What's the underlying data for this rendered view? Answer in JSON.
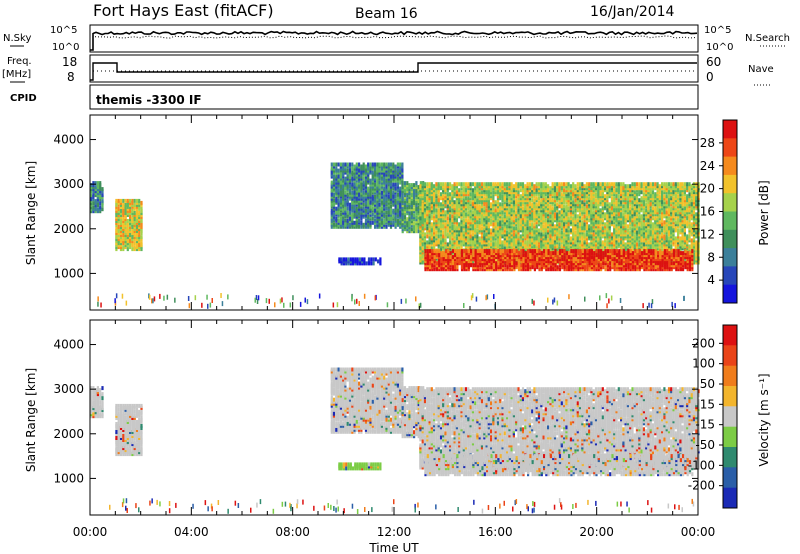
{
  "header": {
    "radar": "Fort Hays East (fitACF)",
    "beam": "Beam 16",
    "date": "16/Jan/2014"
  },
  "strip": {
    "nsky_label": "N.Sky",
    "nsky_ticks": [
      "10^5",
      "10^0"
    ],
    "nsearch_label": "N.Search",
    "nsearch_ticks": [
      "10^5",
      "10^0"
    ],
    "freq_label": "Freq.",
    "freq_unit": "[MHz]",
    "freq_ticks": [
      "18",
      "8"
    ],
    "nave_label": "Nave",
    "nave_ticks": [
      "60",
      "0"
    ],
    "cpid_label": "CPID",
    "cpid_value": "themis -3300 IF"
  },
  "chart_data": [
    {
      "type": "heatmap",
      "name": "Power",
      "ylabel": "Slant Range [km]",
      "ylim": [
        180,
        4550
      ],
      "yticks": [
        "4000",
        "3000",
        "2000",
        "1000"
      ],
      "xlim": [
        0,
        24
      ],
      "colorbar_label": "Power [dB]",
      "colorbar_ticks": [
        "28",
        "24",
        "20",
        "16",
        "12",
        "8",
        "4"
      ],
      "colors": [
        "#1515dd",
        "#2746b9",
        "#3b7f9a",
        "#3f8f5b",
        "#5fb85f",
        "#a6d24b",
        "#f2c22b",
        "#f58a1d",
        "#ee4616",
        "#dd1111"
      ],
      "regions": [
        {
          "t0": 0.0,
          "t1": 0.45,
          "r0": 2350,
          "r1": 3000,
          "level": 0.3
        },
        {
          "t0": 1.0,
          "t1": 2.0,
          "r0": 1500,
          "r1": 2600,
          "level": 0.6
        },
        {
          "t0": 9.5,
          "t1": 12.3,
          "r0": 2000,
          "r1": 3400,
          "level": 0.3
        },
        {
          "t0": 12.3,
          "t1": 13.2,
          "r0": 1900,
          "r1": 3000,
          "level": 0.4
        },
        {
          "t0": 13.0,
          "t1": 24.0,
          "r0": 1200,
          "r1": 3000,
          "level": 0.55
        },
        {
          "t0": 13.2,
          "t1": 23.8,
          "r0": 1050,
          "r1": 1500,
          "level": 0.9
        },
        {
          "t0": 9.8,
          "t1": 11.5,
          "r0": 1180,
          "r1": 1300,
          "level": 0.1
        }
      ]
    },
    {
      "type": "heatmap",
      "name": "Velocity",
      "ylabel": "Slant Range [km]",
      "ylim": [
        180,
        4550
      ],
      "yticks": [
        "4000",
        "3000",
        "2000",
        "1000"
      ],
      "xlim": [
        0,
        24
      ],
      "xlabel": "Time UT",
      "xticks": [
        "00:00",
        "04:00",
        "08:00",
        "12:00",
        "16:00",
        "20:00",
        "00:00"
      ],
      "colorbar_label": "Velocity [m s⁻¹]",
      "colorbar_ticks": [
        "200",
        "100",
        "50",
        "15",
        "-15",
        "-50",
        "-100",
        "-200"
      ],
      "colors": [
        "#1a2ab5",
        "#2a5ea8",
        "#2f8a6f",
        "#7ccc45",
        "#c8c8c8",
        "#f3b52d",
        "#f07d1c",
        "#ea4418",
        "#dd1111"
      ],
      "regions": [
        {
          "t0": 0.0,
          "t1": 0.45,
          "r0": 2350,
          "r1": 3000,
          "level": 0.5
        },
        {
          "t0": 1.0,
          "t1": 2.0,
          "r0": 1500,
          "r1": 2600,
          "level": 0.5
        },
        {
          "t0": 9.5,
          "t1": 12.3,
          "r0": 2000,
          "r1": 3400,
          "level": 0.45
        },
        {
          "t0": 12.3,
          "t1": 13.2,
          "r0": 1900,
          "r1": 3000,
          "level": 0.45
        },
        {
          "t0": 13.0,
          "t1": 24.0,
          "r0": 1200,
          "r1": 3000,
          "level": 0.5
        },
        {
          "t0": 13.2,
          "t1": 23.8,
          "r0": 1050,
          "r1": 1500,
          "level": 0.5
        },
        {
          "t0": 9.8,
          "t1": 11.5,
          "r0": 1180,
          "r1": 1300,
          "level": 0.38
        }
      ]
    }
  ]
}
